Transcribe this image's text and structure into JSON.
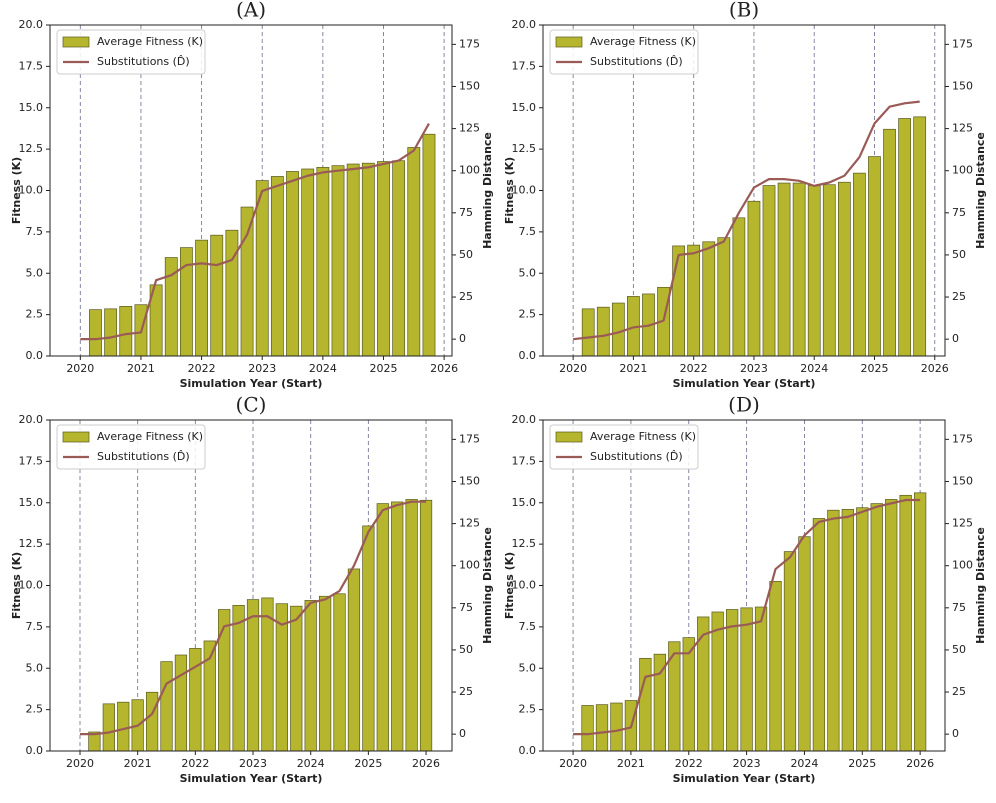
{
  "chart_data": [
    {
      "type": "bar",
      "title": "(A)",
      "xlabel": "Simulation Year (Start)",
      "ylabel": "Fitness (K)",
      "y2label": "Hamming Distance",
      "xlim": [
        2019.5,
        2026.13
      ],
      "xticks": [
        2020,
        2021,
        2022,
        2023,
        2024,
        2025,
        2026
      ],
      "grid": "x",
      "ylim": [
        0,
        20
      ],
      "yticks": [
        {
          "value": 0,
          "label": "0.0"
        },
        2.5,
        {
          "value": 5,
          "label": "5.0"
        },
        7.5,
        {
          "value": 10,
          "label": "10.0"
        },
        12.5,
        {
          "value": 15,
          "label": "15.0"
        },
        17.5,
        {
          "value": 20,
          "label": "20.0"
        }
      ],
      "y2lim": [
        -10,
        186.5
      ],
      "y2ticks": [
        0,
        25,
        50,
        75,
        100,
        125,
        150,
        175
      ],
      "legend": "upper left",
      "series": [
        {
          "name": "Average Fitness (K)",
          "type": "bar",
          "color": "#b5b52e",
          "x": [
            2020.25,
            2020.5,
            2020.75,
            2021,
            2021.25,
            2021.5,
            2021.75,
            2022,
            2022.25,
            2022.5,
            2022.75,
            2023,
            2023.25,
            2023.5,
            2023.75,
            2024,
            2024.25,
            2024.5,
            2024.75,
            2025,
            2025.25,
            2025.5,
            2025.75
          ],
          "values": [
            2.8,
            2.85,
            3.0,
            3.1,
            4.3,
            5.95,
            6.55,
            7.0,
            7.3,
            7.6,
            9.0,
            10.6,
            10.85,
            11.15,
            11.3,
            11.4,
            11.5,
            11.6,
            11.65,
            11.75,
            11.8,
            12.6,
            13.4
          ]
        },
        {
          "name": "Substitutions (D̂)",
          "type": "line",
          "axis": "y2",
          "color": "#9a5b57",
          "x": [
            2020,
            2020.25,
            2020.5,
            2020.75,
            2021,
            2021.25,
            2021.5,
            2021.75,
            2022,
            2022.25,
            2022.5,
            2022.75,
            2023,
            2023.25,
            2023.5,
            2023.75,
            2024,
            2024.25,
            2024.5,
            2024.75,
            2025,
            2025.25,
            2025.5,
            2025.75
          ],
          "values": [
            0,
            0,
            1,
            3,
            4,
            35,
            38,
            44,
            45,
            44,
            47,
            62,
            88,
            91,
            94,
            97,
            99,
            100,
            101,
            102,
            104,
            106,
            112,
            128
          ]
        }
      ]
    },
    {
      "type": "bar",
      "title": "(B)",
      "xlabel": "Simulation Year (Start)",
      "ylabel": "Fitness (K)",
      "y2label": "Hamming Distance",
      "xlim": [
        2019.5,
        2026.17
      ],
      "xticks": [
        2020,
        2021,
        2022,
        2023,
        2024,
        2025,
        2026
      ],
      "grid": "x",
      "ylim": [
        0,
        20
      ],
      "yticks": [
        {
          "value": 0,
          "label": "0.0"
        },
        2.5,
        {
          "value": 5,
          "label": "5.0"
        },
        7.5,
        {
          "value": 10,
          "label": "10.0"
        },
        12.5,
        {
          "value": 15,
          "label": "15.0"
        },
        17.5,
        {
          "value": 20,
          "label": "20.0"
        }
      ],
      "y2lim": [
        -10,
        186.5
      ],
      "y2ticks": [
        0,
        25,
        50,
        75,
        100,
        125,
        150,
        175
      ],
      "legend": "upper left",
      "series": [
        {
          "name": "Average Fitness (K)",
          "type": "bar",
          "color": "#b5b52e",
          "x": [
            2020.25,
            2020.5,
            2020.75,
            2021,
            2021.25,
            2021.5,
            2021.75,
            2022,
            2022.25,
            2022.5,
            2022.75,
            2023,
            2023.25,
            2023.5,
            2023.75,
            2024,
            2024.25,
            2024.5,
            2024.75,
            2025,
            2025.25,
            2025.5,
            2025.75
          ],
          "values": [
            2.85,
            2.95,
            3.2,
            3.6,
            3.75,
            4.15,
            6.65,
            6.7,
            6.9,
            7.15,
            8.35,
            9.35,
            10.3,
            10.45,
            10.45,
            10.3,
            10.35,
            10.5,
            11.05,
            12.05,
            13.7,
            14.35,
            14.45
          ]
        },
        {
          "name": "Substitutions (D̂)",
          "type": "line",
          "axis": "y2",
          "color": "#9a5b57",
          "x": [
            2020,
            2020.25,
            2020.5,
            2020.75,
            2021,
            2021.25,
            2021.5,
            2021.75,
            2022,
            2022.25,
            2022.5,
            2022.75,
            2023,
            2023.25,
            2023.5,
            2023.75,
            2024,
            2024.25,
            2024.5,
            2024.75,
            2025,
            2025.25,
            2025.5,
            2025.75
          ],
          "values": [
            0,
            1,
            2,
            4,
            7,
            8,
            11,
            50,
            51,
            54,
            58,
            75,
            90,
            95,
            95,
            94,
            91,
            93,
            97,
            108,
            128,
            138,
            140,
            141
          ]
        }
      ]
    },
    {
      "type": "bar",
      "title": "(C)",
      "xlabel": "Simulation Year (Start)",
      "ylabel": "Fitness (K)",
      "y2label": "Hamming Distance",
      "xlim": [
        2019.48,
        2026.45
      ],
      "xticks": [
        2020,
        2021,
        2022,
        2023,
        2024,
        2025,
        2026
      ],
      "grid": "x",
      "ylim": [
        0,
        20
      ],
      "yticks": [
        {
          "value": 0,
          "label": "0.0"
        },
        2.5,
        {
          "value": 5,
          "label": "5.0"
        },
        7.5,
        {
          "value": 10,
          "label": "10.0"
        },
        12.5,
        {
          "value": 15,
          "label": "15.0"
        },
        17.5,
        {
          "value": 20,
          "label": "20.0"
        }
      ],
      "y2lim": [
        -10,
        186.5
      ],
      "y2ticks": [
        0,
        25,
        50,
        75,
        100,
        125,
        150,
        175
      ],
      "legend": "upper left",
      "series": [
        {
          "name": "Average Fitness (K)",
          "type": "bar",
          "color": "#b5b52e",
          "x": [
            2020.25,
            2020.5,
            2020.75,
            2021,
            2021.25,
            2021.5,
            2021.75,
            2022,
            2022.25,
            2022.5,
            2022.75,
            2023,
            2023.25,
            2023.5,
            2023.75,
            2024,
            2024.25,
            2024.5,
            2024.75,
            2025,
            2025.25,
            2025.5,
            2025.75,
            2026
          ],
          "values": [
            1.15,
            2.85,
            2.95,
            3.1,
            3.55,
            5.4,
            5.8,
            6.2,
            6.65,
            8.55,
            8.8,
            9.15,
            9.25,
            8.9,
            8.75,
            9.1,
            9.35,
            9.5,
            11.0,
            13.6,
            14.95,
            15.05,
            15.2,
            15.15
          ]
        },
        {
          "name": "Substitutions (D̂)",
          "type": "line",
          "axis": "y2",
          "color": "#9a5b57",
          "x": [
            2020,
            2020.25,
            2020.5,
            2020.75,
            2021,
            2021.25,
            2021.5,
            2021.75,
            2022,
            2022.25,
            2022.5,
            2022.75,
            2023,
            2023.25,
            2023.5,
            2023.75,
            2024,
            2024.25,
            2024.5,
            2024.75,
            2025,
            2025.25,
            2025.5,
            2025.75,
            2026
          ],
          "values": [
            0,
            0,
            1,
            3,
            5,
            12,
            30,
            35,
            40,
            45,
            64,
            66,
            70,
            70,
            65,
            68,
            78,
            80,
            85,
            100,
            120,
            133,
            136,
            138,
            138
          ]
        }
      ]
    },
    {
      "type": "bar",
      "title": "(D)",
      "xlabel": "Simulation Year (Start)",
      "ylabel": "Fitness (K)",
      "y2label": "Hamming Distance",
      "xlim": [
        2019.48,
        2026.43
      ],
      "xticks": [
        2020,
        2021,
        2022,
        2023,
        2024,
        2025,
        2026
      ],
      "grid": "x",
      "ylim": [
        0,
        20
      ],
      "yticks": [
        {
          "value": 0,
          "label": "0.0"
        },
        2.5,
        {
          "value": 5,
          "label": "5.0"
        },
        7.5,
        {
          "value": 10,
          "label": "10.0"
        },
        12.5,
        {
          "value": 15,
          "label": "15.0"
        },
        17.5,
        {
          "value": 20,
          "label": "20.0"
        }
      ],
      "y2lim": [
        -10,
        186.5
      ],
      "y2ticks": [
        0,
        25,
        50,
        75,
        100,
        125,
        150,
        175
      ],
      "legend": "upper left",
      "series": [
        {
          "name": "Average Fitness (K)",
          "type": "bar",
          "color": "#b5b52e",
          "x": [
            2020.25,
            2020.5,
            2020.75,
            2021,
            2021.25,
            2021.5,
            2021.75,
            2022,
            2022.25,
            2022.5,
            2022.75,
            2023,
            2023.25,
            2023.5,
            2023.75,
            2024,
            2024.25,
            2024.5,
            2024.75,
            2025,
            2025.25,
            2025.5,
            2025.75,
            2026
          ],
          "values": [
            2.75,
            2.8,
            2.9,
            3.05,
            5.6,
            5.85,
            6.6,
            6.85,
            8.1,
            8.4,
            8.55,
            8.65,
            8.7,
            10.25,
            12.05,
            12.95,
            14.05,
            14.55,
            14.6,
            14.7,
            14.95,
            15.2,
            15.45,
            15.6
          ]
        },
        {
          "name": "Substitutions (D̂)",
          "type": "line",
          "axis": "y2",
          "color": "#9a5b57",
          "x": [
            2020,
            2020.25,
            2020.5,
            2020.75,
            2021,
            2021.25,
            2021.5,
            2021.75,
            2022,
            2022.25,
            2022.5,
            2022.75,
            2023,
            2023.25,
            2023.5,
            2023.75,
            2024,
            2024.25,
            2024.5,
            2024.75,
            2025,
            2025.25,
            2025.5,
            2025.75,
            2026
          ],
          "values": [
            0,
            0,
            1,
            2,
            4,
            34,
            36,
            48,
            48,
            59,
            62,
            64,
            65,
            67,
            98,
            105,
            118,
            126,
            128,
            129,
            132,
            135,
            137,
            139,
            139
          ]
        }
      ]
    }
  ]
}
